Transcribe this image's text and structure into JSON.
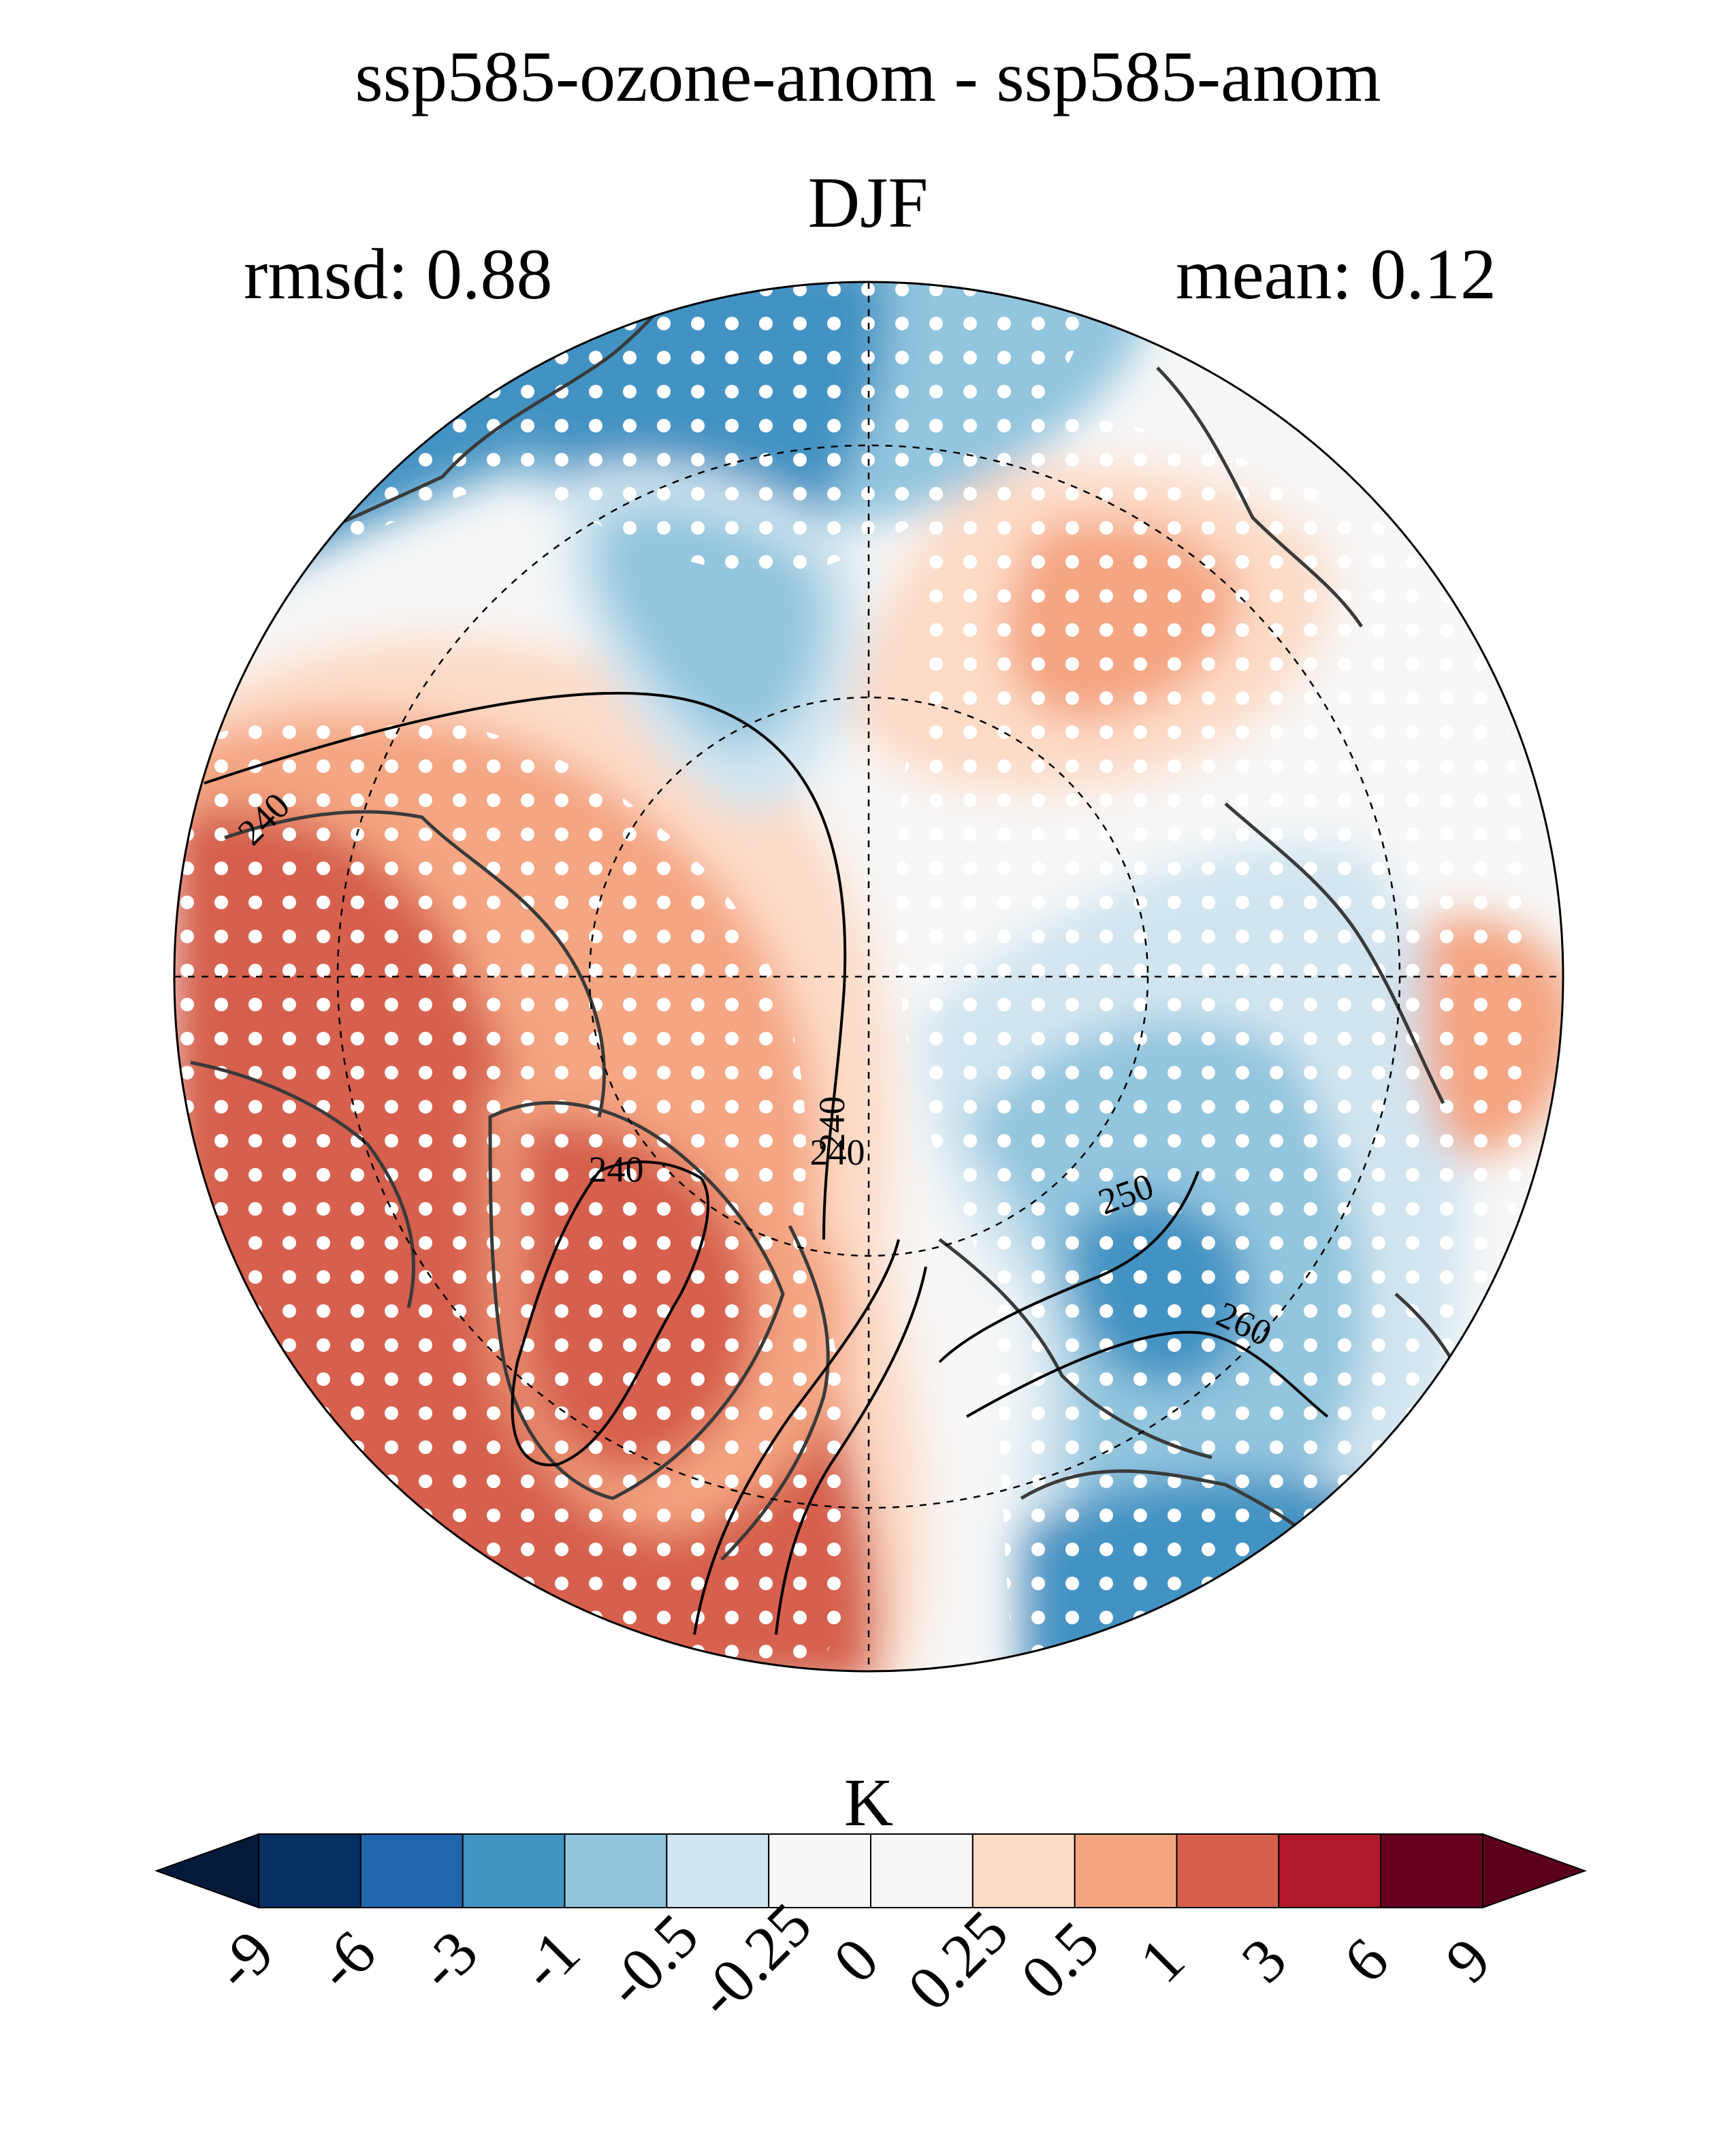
{
  "title": "ssp585-ozone-anom - ssp585-anom",
  "season": "DJF",
  "stats": {
    "rmsd": "rmsd: 0.88",
    "mean": "mean: 0.12"
  },
  "contour_labels": [
    "240",
    "240",
    "240",
    "240",
    "250",
    "260"
  ],
  "colorbar": {
    "unit": "K",
    "ticks": [
      "-9",
      "-6",
      "-3",
      "-1",
      "-0.5",
      "-0.25",
      "0",
      "0.25",
      "0.5",
      "1",
      "3",
      "6",
      "9"
    ],
    "colors": [
      "#053061",
      "#2166ac",
      "#4393c3",
      "#92c5de",
      "#d1e5f0",
      "#f7f7f7",
      "#f7f7f7",
      "#fddbc7",
      "#f4a582",
      "#d6604d",
      "#b2182b",
      "#67001f"
    ],
    "extend_colors": {
      "low": "#031a3a",
      "high": "#5a001a"
    }
  },
  "colors": {
    "coast": "#3a3a3a",
    "stipple": "#ffffff"
  }
}
